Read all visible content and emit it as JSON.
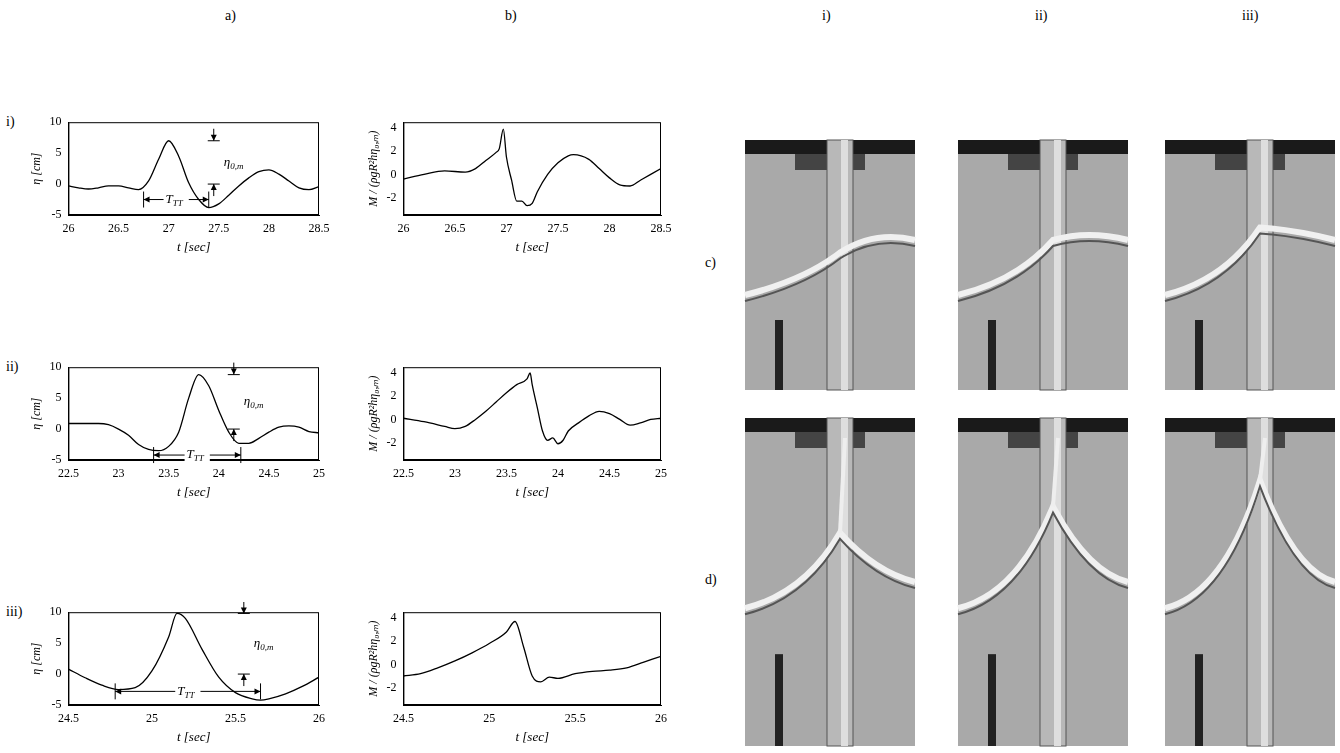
{
  "column_labels": [
    "a)",
    "b)"
  ],
  "row_labels": [
    "i)",
    "ii)",
    "iii)"
  ],
  "chart_data": [
    {
      "type": "line",
      "color": "#000000",
      "xlabel": "t [sec]",
      "ylabel": "η [cm]",
      "xlim": [
        26,
        28.5
      ],
      "xticks": [
        26,
        26.5,
        27,
        27.5,
        28,
        28.5
      ],
      "ylim": [
        -5,
        10
      ],
      "yticks": [
        -5,
        0,
        5,
        10
      ],
      "grid": false,
      "x": [
        26,
        26.1,
        26.2,
        26.3,
        26.4,
        26.5,
        26.6,
        26.7,
        26.8,
        26.9,
        27.0,
        27.1,
        27.2,
        27.3,
        27.4,
        27.5,
        27.6,
        27.7,
        27.8,
        27.9,
        28.0,
        28.1,
        28.2,
        28.3,
        28.4,
        28.5
      ],
      "values": [
        -0.3,
        -0.6,
        -0.8,
        -0.6,
        -0.3,
        -0.3,
        -0.6,
        -0.9,
        0.5,
        4.0,
        7.0,
        4.5,
        0.2,
        -2.5,
        -3.8,
        -3.2,
        -1.8,
        -0.3,
        1.0,
        2.0,
        2.3,
        1.6,
        0.5,
        -0.6,
        -0.9,
        -0.4
      ],
      "annotations": [
        {
          "kind": "span",
          "label": "T",
          "subscript": "TT",
          "x_start": 26.75,
          "x_end": 27.4,
          "y": -2.5
        },
        {
          "kind": "height",
          "label": "η",
          "subscript": "0,m",
          "x": 27.45,
          "y_start": 0,
          "y_end": 7
        }
      ]
    },
    {
      "type": "line",
      "color": "#000000",
      "xlabel": "t [sec]",
      "ylabel": "M / (ρgR²hη₀,ₘ)",
      "xlim": [
        26,
        28.5
      ],
      "xticks": [
        26,
        26.5,
        27,
        27.5,
        28,
        28.5
      ],
      "ylim": [
        -3.5,
        4.5
      ],
      "yticks": [
        -2,
        0,
        2,
        4
      ],
      "grid": false,
      "x": [
        26,
        26.2,
        26.4,
        26.6,
        26.7,
        26.8,
        26.9,
        26.93,
        26.97,
        27.0,
        27.05,
        27.1,
        27.15,
        27.2,
        27.25,
        27.3,
        27.4,
        27.5,
        27.6,
        27.65,
        27.8,
        27.9,
        28.0,
        28.1,
        28.2,
        28.3,
        28.4,
        28.5
      ],
      "values": [
        -0.4,
        0,
        0.3,
        0.2,
        0.5,
        1.2,
        1.9,
        2.2,
        3.9,
        1.5,
        -0.5,
        -2.3,
        -2.3,
        -2.7,
        -2.5,
        -1.5,
        0,
        1.0,
        1.6,
        1.7,
        1.3,
        0.5,
        -0.3,
        -0.9,
        -1.0,
        -0.5,
        0,
        0.5
      ]
    },
    {
      "type": "line",
      "color": "#000000",
      "xlabel": "t [sec]",
      "ylabel": "η [cm]",
      "xlim": [
        22.5,
        25
      ],
      "xticks": [
        22.5,
        23,
        23.5,
        24,
        24.5,
        25
      ],
      "ylim": [
        -5,
        10
      ],
      "yticks": [
        -5,
        0,
        5,
        10
      ],
      "grid": false,
      "x": [
        22.5,
        22.8,
        22.9,
        23.0,
        23.1,
        23.2,
        23.3,
        23.4,
        23.5,
        23.6,
        23.7,
        23.8,
        23.9,
        24.0,
        24.1,
        24.2,
        24.3,
        24.4,
        24.5,
        24.6,
        24.7,
        24.8,
        24.9,
        25
      ],
      "values": [
        0.9,
        0.9,
        0.7,
        0,
        -1.0,
        -2.5,
        -3.3,
        -3.5,
        -2.8,
        -0.5,
        5.0,
        8.8,
        7.0,
        3.0,
        -0.5,
        -2.3,
        -2.3,
        -1.5,
        -0.5,
        0.3,
        0.5,
        0.3,
        -0.4,
        -0.6
      ],
      "annotations": [
        {
          "kind": "span",
          "label": "T",
          "subscript": "TT",
          "x_start": 23.35,
          "x_end": 24.22,
          "y": -4.2
        },
        {
          "kind": "height",
          "label": "η",
          "subscript": "0,m",
          "x": 24.15,
          "y_start": 0,
          "y_end": 8.8
        }
      ]
    },
    {
      "type": "line",
      "color": "#000000",
      "xlabel": "t [sec]",
      "ylabel": "M / (ρgR²hη₀,ₘ)",
      "xlim": [
        22.5,
        25
      ],
      "xticks": [
        22.5,
        23,
        23.5,
        24,
        24.5,
        25
      ],
      "ylim": [
        -3.5,
        4.5
      ],
      "yticks": [
        -2,
        0,
        2,
        4
      ],
      "grid": false,
      "x": [
        22.5,
        22.7,
        22.9,
        23.0,
        23.1,
        23.2,
        23.3,
        23.4,
        23.5,
        23.6,
        23.7,
        23.73,
        23.75,
        23.8,
        23.85,
        23.9,
        23.95,
        24.0,
        24.05,
        24.1,
        24.2,
        24.3,
        24.4,
        24.5,
        24.6,
        24.7,
        24.8,
        24.9,
        25
      ],
      "values": [
        0.1,
        -0.2,
        -0.6,
        -0.8,
        -0.6,
        0,
        0.7,
        1.5,
        2.3,
        3.0,
        3.5,
        4.0,
        3.0,
        1.0,
        -1.0,
        -1.8,
        -1.6,
        -2.1,
        -1.8,
        -1.0,
        -0.3,
        0.3,
        0.7,
        0.5,
        0,
        -0.5,
        -0.3,
        0,
        0.1
      ]
    },
    {
      "type": "line",
      "color": "#000000",
      "xlabel": "t [sec]",
      "ylabel": "η [cm]",
      "xlim": [
        24.5,
        26
      ],
      "xticks": [
        24.5,
        25,
        25.5,
        26
      ],
      "ylim": [
        -5,
        10
      ],
      "yticks": [
        -5,
        0,
        5,
        10
      ],
      "grid": false,
      "x": [
        24.5,
        24.6,
        24.7,
        24.8,
        24.9,
        25.0,
        25.1,
        25.15,
        25.2,
        25.3,
        25.4,
        25.5,
        25.6,
        25.65,
        25.7,
        25.8,
        25.9,
        26.0
      ],
      "values": [
        0.8,
        -0.6,
        -1.8,
        -2.5,
        -2.2,
        0.5,
        6.0,
        9.8,
        9.0,
        4.0,
        -0.5,
        -3.0,
        -4.0,
        -4.2,
        -4.0,
        -3.2,
        -2.0,
        -0.5
      ],
      "annotations": [
        {
          "kind": "span",
          "label": "T",
          "subscript": "TT",
          "x_start": 24.78,
          "x_end": 25.65,
          "y": -2.8
        },
        {
          "kind": "height",
          "label": "η",
          "subscript": "0,m",
          "x": 25.55,
          "y_start": 0,
          "y_end": 9.8
        }
      ]
    },
    {
      "type": "line",
      "color": "#000000",
      "xlabel": "t [sec]",
      "ylabel": "M / (ρgR²hη₀,ₘ)",
      "xlim": [
        24.5,
        26
      ],
      "xticks": [
        24.5,
        25,
        25.5,
        26
      ],
      "ylim": [
        -3.5,
        4.5
      ],
      "yticks": [
        -2,
        0,
        2,
        4
      ],
      "grid": false,
      "x": [
        24.5,
        24.6,
        24.7,
        24.8,
        24.9,
        25.0,
        25.1,
        25.15,
        25.2,
        25.25,
        25.3,
        25.35,
        25.4,
        25.5,
        25.6,
        25.7,
        25.8,
        25.9,
        26
      ],
      "values": [
        -1.0,
        -0.8,
        -0.3,
        0.3,
        1.0,
        1.8,
        2.8,
        3.7,
        1.5,
        -1.0,
        -1.5,
        -1.1,
        -1.2,
        -0.8,
        -0.6,
        -0.5,
        -0.3,
        0.2,
        0.7
      ]
    }
  ],
  "photos": {
    "column_labels": [
      "i)",
      "ii)",
      "iii)"
    ],
    "row_labels": [
      "c)",
      "d)"
    ]
  }
}
